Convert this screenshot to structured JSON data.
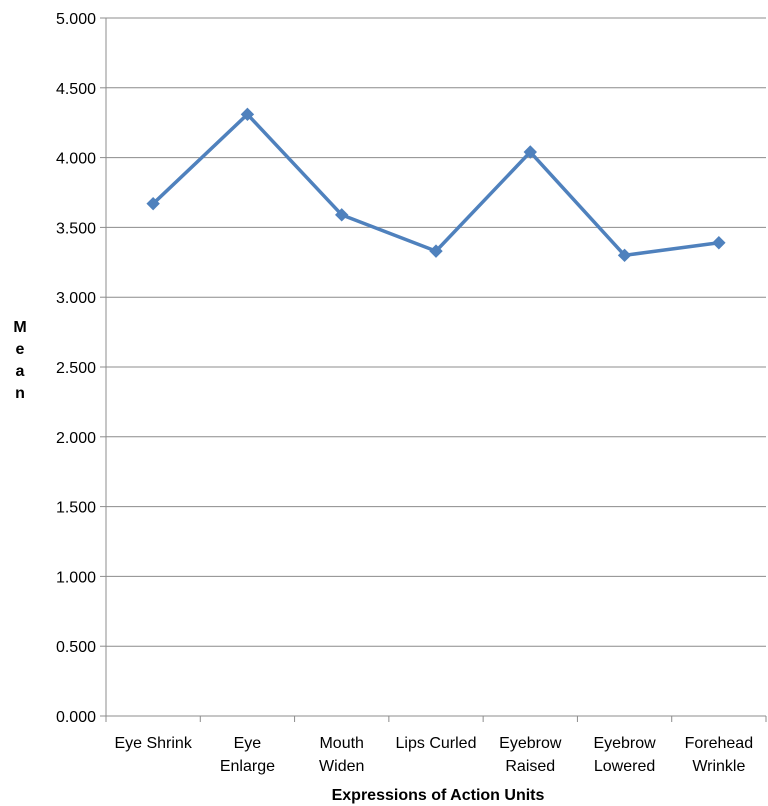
{
  "colors": {
    "series": "#4f81bd",
    "grid": "#8c8c8c",
    "text": "#000000"
  },
  "chart_data": {
    "type": "line",
    "title": "",
    "xlabel": "Expressions of Action Units",
    "ylabel": "Mean",
    "ylim": [
      0,
      5
    ],
    "yticks": [
      "0.000",
      "0.500",
      "1.000",
      "1.500",
      "2.000",
      "2.500",
      "3.000",
      "3.500",
      "4.000",
      "4.500",
      "5.000"
    ],
    "categories": [
      [
        "Eye Shrink"
      ],
      [
        "Eye",
        "Enlarge"
      ],
      [
        "Mouth",
        "Widen"
      ],
      [
        "Lips Curled"
      ],
      [
        "Eyebrow",
        "Raised"
      ],
      [
        "Eyebrow",
        "Lowered"
      ],
      [
        "Forehead",
        "Wrinkle"
      ]
    ],
    "series": [
      {
        "values": [
          3.67,
          4.31,
          3.59,
          3.33,
          4.04,
          3.3,
          3.39
        ],
        "marker": "diamond"
      }
    ],
    "grid": true,
    "legend": "none"
  }
}
